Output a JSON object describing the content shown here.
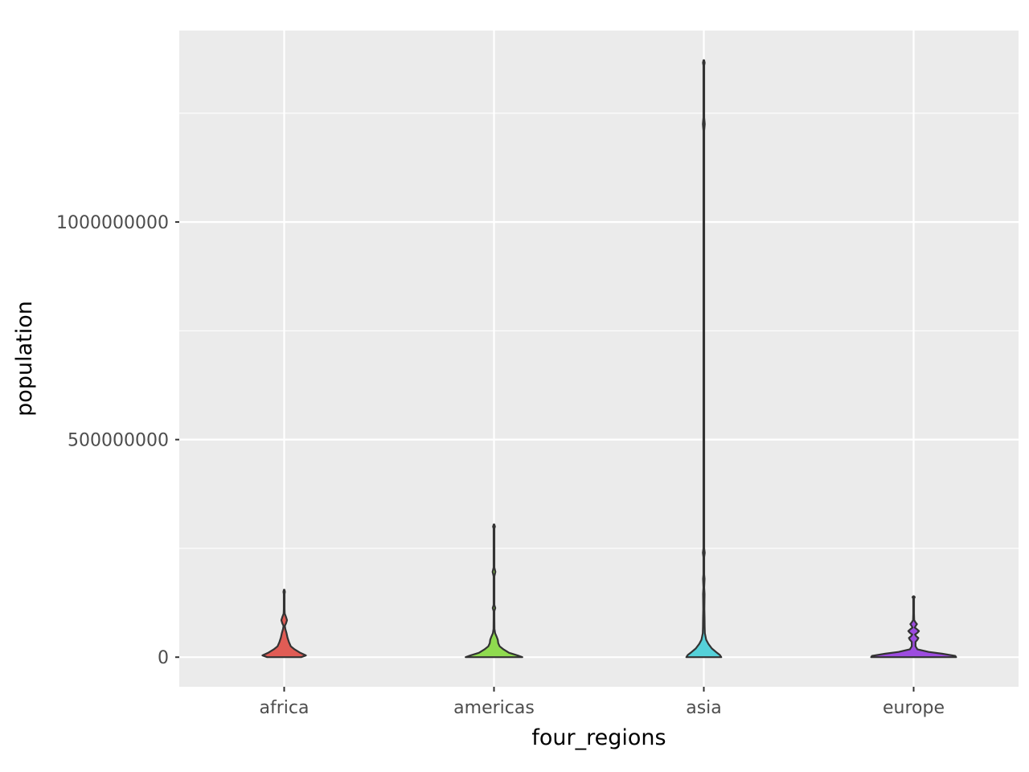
{
  "chart_data": {
    "type": "violin",
    "xlabel": "four_regions",
    "ylabel": "population",
    "categories": [
      "africa",
      "americas",
      "asia",
      "europe"
    ],
    "y_ticks": [
      0,
      500000000,
      1000000000
    ],
    "y_tick_labels": [
      "0",
      "500000000",
      "1000000000"
    ],
    "ylim": [
      -68000000,
      1440000000
    ],
    "grid": true,
    "legend": "none",
    "colors": {
      "africa": "#e05c55",
      "americas": "#8fdb4f",
      "asia": "#55d1d9",
      "europe": "#9d4ce0",
      "panel_background": "#ebebeb",
      "grid": "#ffffff",
      "outline": "#333333"
    },
    "series": [
      {
        "category": "africa",
        "fill": "#e05c55",
        "min": 0,
        "max": 155000000,
        "profile": [
          [
            0,
            0.18
          ],
          [
            4000000,
            0.23
          ],
          [
            10000000,
            0.17
          ],
          [
            18000000,
            0.11
          ],
          [
            25000000,
            0.07
          ],
          [
            35000000,
            0.05
          ],
          [
            45000000,
            0.035
          ],
          [
            55000000,
            0.025
          ],
          [
            65000000,
            0.012
          ],
          [
            72000000,
            0.007
          ],
          [
            78000000,
            0.02
          ],
          [
            85000000,
            0.03
          ],
          [
            92000000,
            0.02
          ],
          [
            100000000,
            0.006
          ],
          [
            110000000,
            0.004
          ],
          [
            130000000,
            0.004
          ],
          [
            145000000,
            0.004
          ],
          [
            150000000,
            0.008
          ],
          [
            155000000,
            0.003
          ]
        ]
      },
      {
        "category": "americas",
        "fill": "#8fdb4f",
        "min": 0,
        "max": 305000000,
        "profile": [
          [
            0,
            0.3
          ],
          [
            4000000,
            0.25
          ],
          [
            10000000,
            0.16
          ],
          [
            18000000,
            0.1
          ],
          [
            25000000,
            0.06
          ],
          [
            32000000,
            0.045
          ],
          [
            40000000,
            0.04
          ],
          [
            47000000,
            0.028
          ],
          [
            55000000,
            0.012
          ],
          [
            65000000,
            0.005
          ],
          [
            90000000,
            0.004
          ],
          [
            106000000,
            0.004
          ],
          [
            113000000,
            0.014
          ],
          [
            120000000,
            0.004
          ],
          [
            140000000,
            0.004
          ],
          [
            186000000,
            0.004
          ],
          [
            196000000,
            0.015
          ],
          [
            206000000,
            0.004
          ],
          [
            250000000,
            0.004
          ],
          [
            296000000,
            0.004
          ],
          [
            300000000,
            0.01
          ],
          [
            305000000,
            0.003
          ]
        ]
      },
      {
        "category": "asia",
        "fill": "#55d1d9",
        "min": 0,
        "max": 1372000000,
        "profile": [
          [
            0,
            0.185
          ],
          [
            5000000,
            0.17
          ],
          [
            10000000,
            0.14
          ],
          [
            20000000,
            0.085
          ],
          [
            30000000,
            0.05
          ],
          [
            40000000,
            0.025
          ],
          [
            55000000,
            0.011
          ],
          [
            70000000,
            0.009
          ],
          [
            90000000,
            0.008
          ],
          [
            110000000,
            0.006
          ],
          [
            130000000,
            0.007
          ],
          [
            145000000,
            0.008
          ],
          [
            160000000,
            0.004
          ],
          [
            170000000,
            0.006
          ],
          [
            180000000,
            0.008
          ],
          [
            190000000,
            0.004
          ],
          [
            230000000,
            0.004
          ],
          [
            240000000,
            0.01
          ],
          [
            250000000,
            0.004
          ],
          [
            1210000000,
            0.004
          ],
          [
            1225000000,
            0.01
          ],
          [
            1240000000,
            0.004
          ],
          [
            1360000000,
            0.004
          ],
          [
            1366000000,
            0.009
          ],
          [
            1372000000,
            0.003
          ]
        ]
      },
      {
        "category": "europe",
        "fill": "#9d4ce0",
        "min": 0,
        "max": 140000000,
        "profile": [
          [
            0,
            0.45
          ],
          [
            3000000,
            0.44
          ],
          [
            8000000,
            0.3
          ],
          [
            12000000,
            0.16
          ],
          [
            18000000,
            0.04
          ],
          [
            25000000,
            0.02
          ],
          [
            35000000,
            0.02
          ],
          [
            40000000,
            0.04
          ],
          [
            44000000,
            0.05
          ],
          [
            48000000,
            0.028
          ],
          [
            52000000,
            0.015
          ],
          [
            56000000,
            0.04
          ],
          [
            60000000,
            0.056
          ],
          [
            64000000,
            0.036
          ],
          [
            68000000,
            0.012
          ],
          [
            72000000,
            0.022
          ],
          [
            76000000,
            0.035
          ],
          [
            80000000,
            0.02
          ],
          [
            85000000,
            0.006
          ],
          [
            100000000,
            0.004
          ],
          [
            125000000,
            0.004
          ],
          [
            135000000,
            0.004
          ],
          [
            138000000,
            0.012
          ],
          [
            140000000,
            0.003
          ]
        ]
      }
    ]
  }
}
